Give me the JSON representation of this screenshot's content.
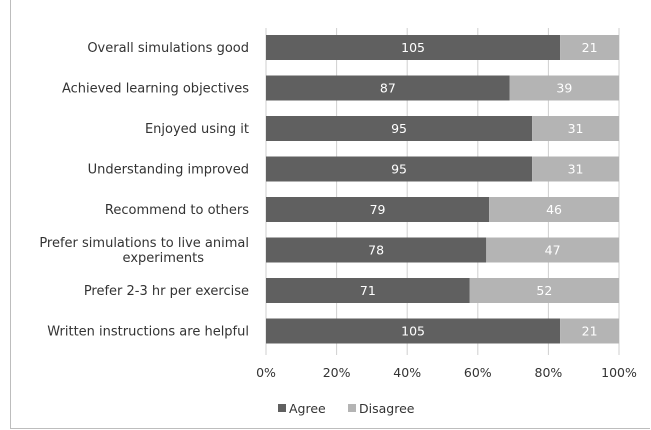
{
  "chart_data": {
    "type": "bar",
    "orientation": "horizontal",
    "stacked": "percent",
    "categories": [
      "Overall simulations good",
      "Achieved learning objectives",
      "Enjoyed using it",
      "Understanding improved",
      "Recommend to others",
      "Prefer simulations to live animal experiments",
      "Prefer 2-3 hr per exercise",
      "Written instructions are helpful"
    ],
    "series": [
      {
        "name": "Agree",
        "color": "#606060",
        "values": [
          105,
          87,
          95,
          95,
          79,
          78,
          71,
          105
        ]
      },
      {
        "name": "Disagree",
        "color": "#b4b4b4",
        "values": [
          21,
          39,
          31,
          31,
          46,
          47,
          52,
          21
        ]
      }
    ],
    "xticks": [
      "0%",
      "20%",
      "40%",
      "60%",
      "80%",
      "100%"
    ],
    "xlim": [
      0,
      100
    ],
    "grid": "vertical",
    "legend_position": "bottom"
  }
}
